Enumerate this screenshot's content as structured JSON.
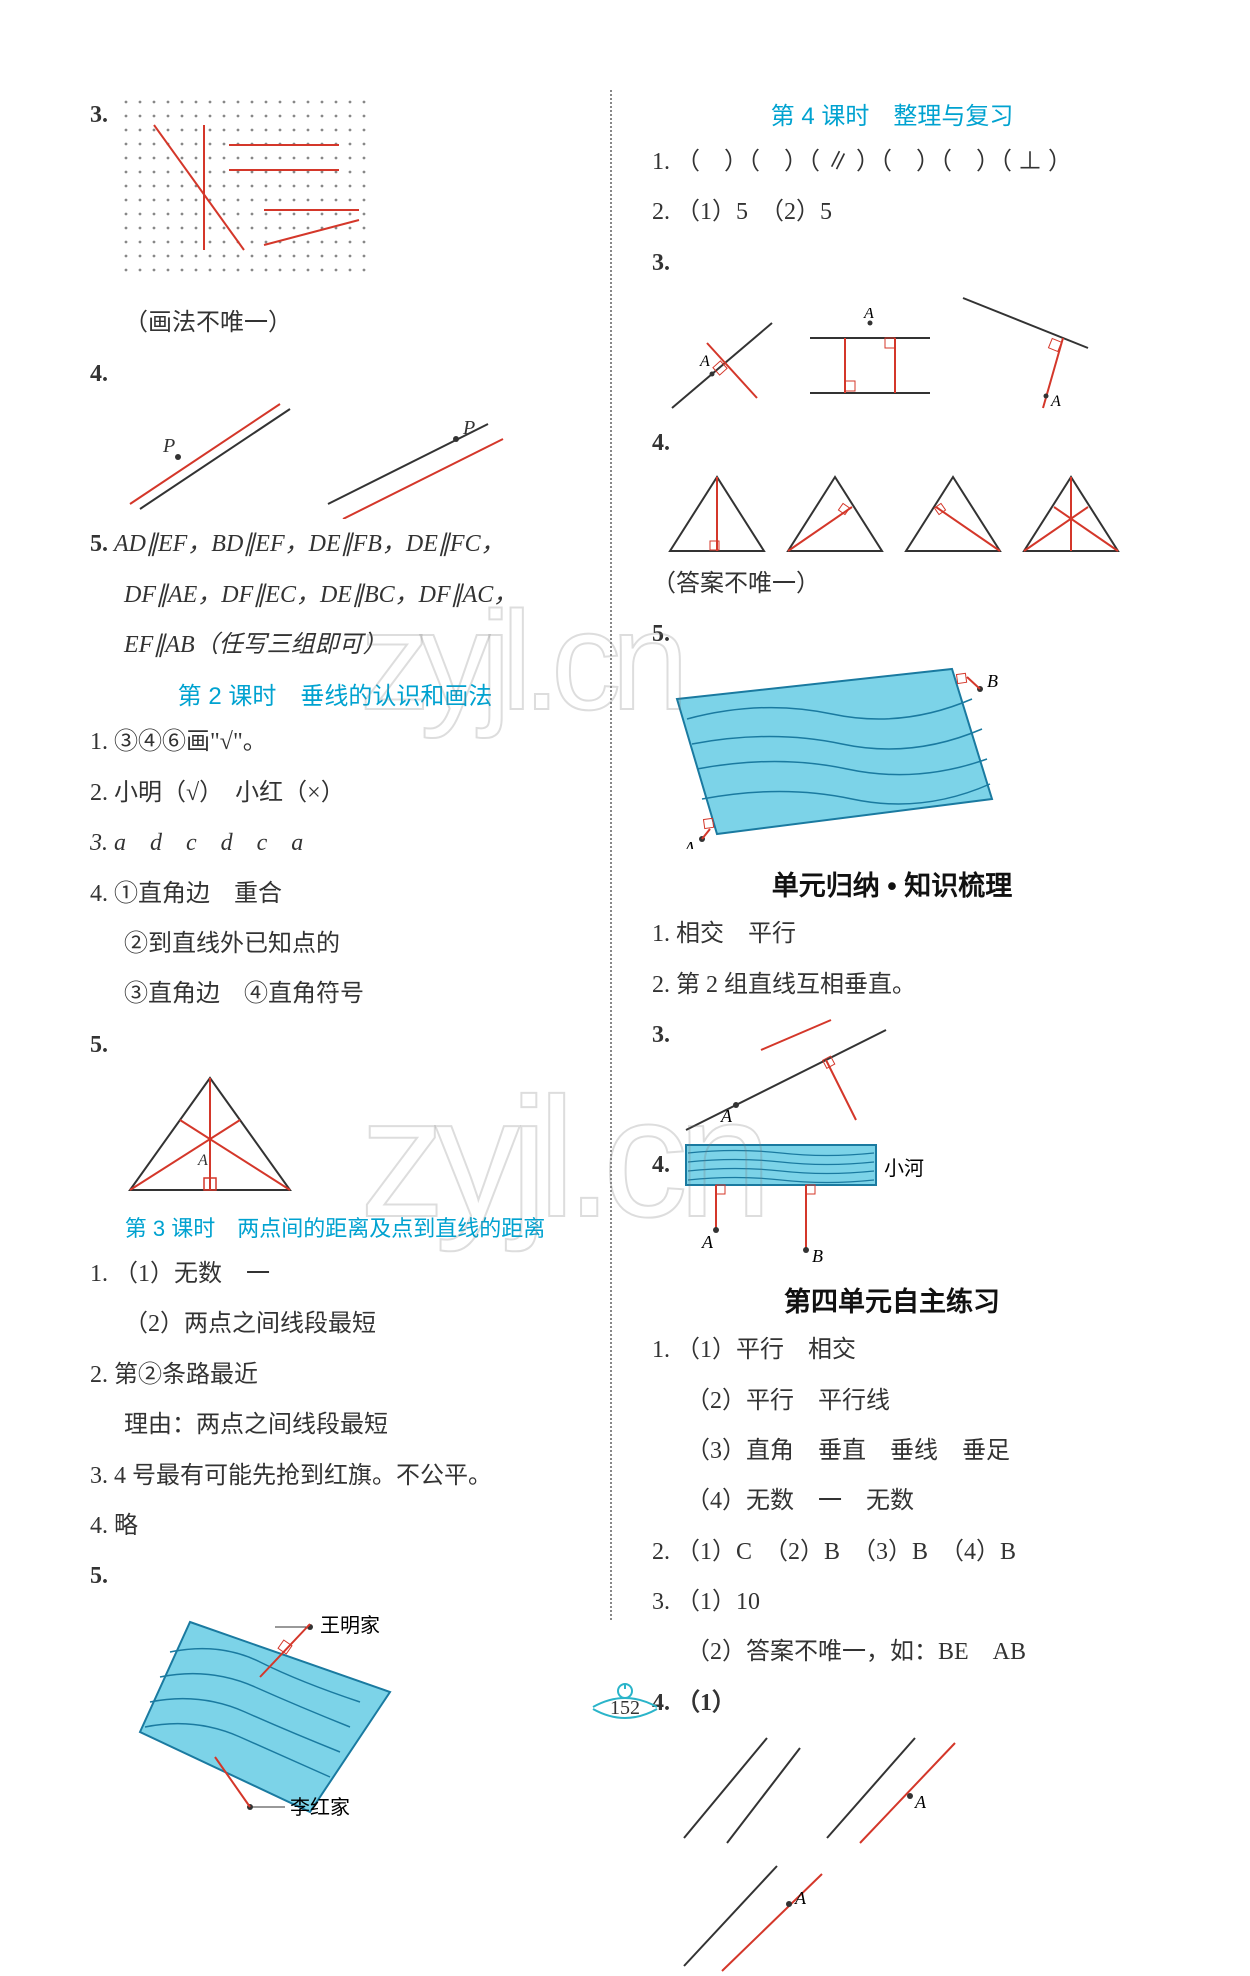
{
  "colors": {
    "lesson_title": "#00a2d0",
    "text": "#333333",
    "river": "#7cd3e8",
    "river_wave": "#1a7aa0",
    "divider": "#888888",
    "footer_ring": "#2ab4c9"
  },
  "page_number": "152",
  "watermark1": "zyjl.cn",
  "watermark2": "zyjl.cn",
  "left": {
    "q3_label": "3.",
    "q3_note": "（画法不唯一）",
    "q4_label": "4.",
    "q4_point_p1": "P",
    "q4_point_p2": "P",
    "q5_label": "5.",
    "q5_text1": "AD∥EF，BD∥EF，DE∥FB，DE∥FC，",
    "q5_text2": "DF∥AE，DF∥EC，DE∥BC，DF∥AC，",
    "q5_text3": "EF∥AB（任写三组即可）",
    "lesson2": "第 2 课时　垂线的认识和画法",
    "l2_q1": "1. ③④⑥画\"√\"。",
    "l2_q2": "2. 小明（√）　小红（×）",
    "l2_q3": "3. a　d　c　d　c　a",
    "l2_q4_1": "4. ①直角边　重合",
    "l2_q4_2": "②到直线外已知点的",
    "l2_q4_3": "③直角边　④直角符号",
    "l2_q5_label": "5.",
    "l2_q5_letter": "A",
    "lesson3": "第 3 课时　两点间的距离及点到直线的距离",
    "l3_q1_1": "1. （1）无数　一",
    "l3_q1_2": "（2）两点之间线段最短",
    "l3_q2_1": "2. 第②条路最近",
    "l3_q2_2": "理由：两点之间线段最短",
    "l3_q3": "3. 4 号最有可能先抢到红旗。不公平。",
    "l3_q4": "4. 略",
    "l3_q5_label": "5.",
    "l3_q5_name1": "王明家",
    "l3_q5_name2": "李红家"
  },
  "right": {
    "lesson4": "第 4 课时　整理与复习",
    "l4_q1": "1. （　）（　）（ ∥ ）（　）（　）（ ⊥ ）",
    "l4_q2": "2. （1）5　（2）5",
    "l4_q3_label": "3.",
    "l4_q3_letter": "A",
    "l4_q4_label": "4.",
    "l4_q4_note": "（答案不唯一）",
    "l4_q5_label": "5.",
    "l4_q5_ptA": "A",
    "l4_q5_ptB": "B",
    "unit_summary": "单元归纳 • 知识梳理",
    "us_q1": "1. 相交　平行",
    "us_q2": "2. 第 2 组直线互相垂直。",
    "us_q3_label": "3.",
    "us_q3_ptA": "A",
    "us_q4_label": "4.",
    "us_q4_river": "小河",
    "us_q4_ptA": "A",
    "us_q4_ptB": "B",
    "unit_test": "第四单元自主练习",
    "ut_q1_1": "1. （1）平行　相交",
    "ut_q1_2": "（2）平行　平行线",
    "ut_q1_3": "（3）直角　垂直　垂线　垂足",
    "ut_q1_4": "（4）无数　一　无数",
    "ut_q2": "2. （1）C　（2）B　（3）B　（4）B",
    "ut_q3_1": "3. （1）10",
    "ut_q3_2": "（2）答案不唯一，如：BE　AB",
    "ut_q4_label": "4. （1）",
    "ut_q4_ptA": "A"
  }
}
